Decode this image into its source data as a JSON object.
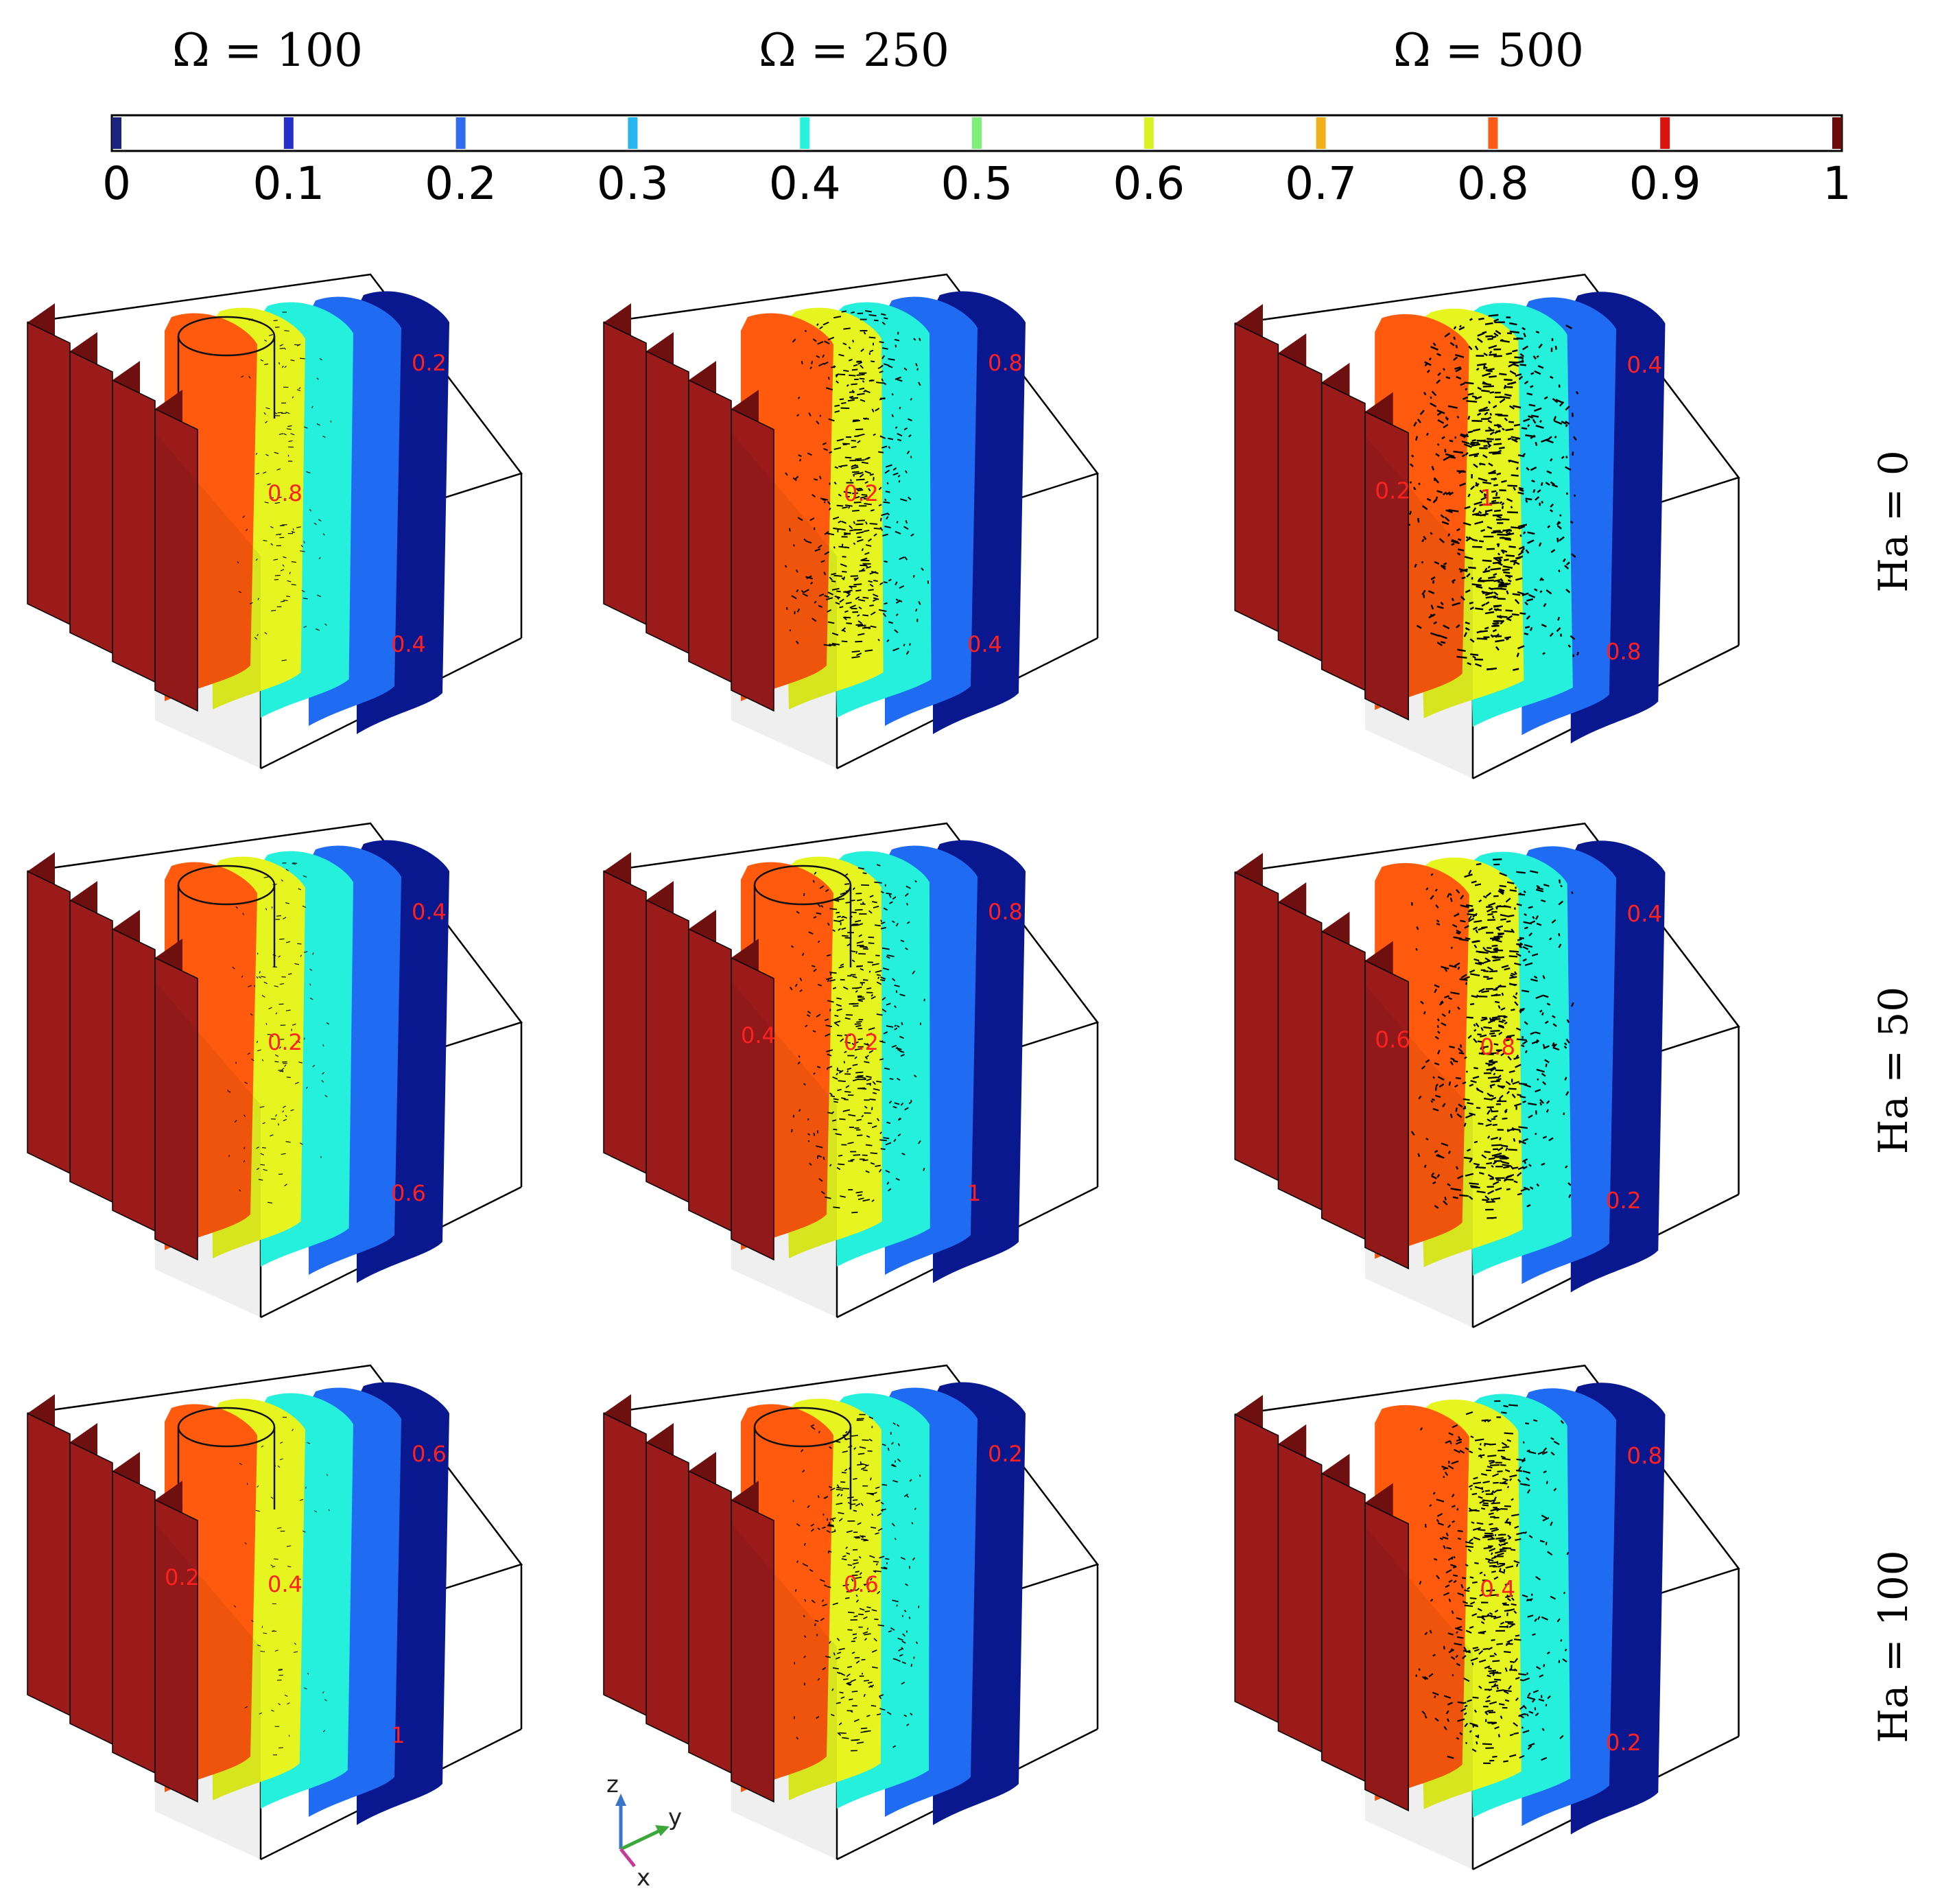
{
  "column_headers": [
    "Ω = 100",
    "Ω = 250",
    "Ω = 500"
  ],
  "row_headers": [
    "Ha = 0",
    "Ha = 50",
    "Ha = 100"
  ],
  "colorbar": {
    "min": 0,
    "max": 1,
    "ticks": [
      "0",
      "0.1",
      "0.2",
      "0.3",
      "0.4",
      "0.5",
      "0.6",
      "0.7",
      "0.8",
      "0.9",
      "1"
    ],
    "tick_colors": [
      "#1a237e",
      "#2630c8",
      "#2f6cf0",
      "#27b6f4",
      "#27f2de",
      "#7ef07a",
      "#d8f226",
      "#f0b01a",
      "#ff5a16",
      "#d8140e",
      "#6e0c0c"
    ]
  },
  "isosurface_colors": {
    "1": "#9b1b1b",
    "0.8": "#ff5a0e",
    "0.6": "#e6f520",
    "0.4": "#24f0dc",
    "0.2": "#1f6cf2",
    "0": "#0a1890"
  },
  "panels": [
    {
      "row": 0,
      "col": 0,
      "vectors": 0.2,
      "cylinder": true,
      "labels": [
        "0.2",
        "0.8",
        "0.4"
      ]
    },
    {
      "row": 0,
      "col": 1,
      "vectors": 0.7,
      "cylinder": false,
      "labels": [
        "0.8",
        "0.2",
        "0.4"
      ]
    },
    {
      "row": 0,
      "col": 2,
      "vectors": 1.0,
      "cylinder": false,
      "labels": [
        "0.4",
        "1",
        "0.8",
        "0.2"
      ]
    },
    {
      "row": 1,
      "col": 0,
      "vectors": 0.2,
      "cylinder": true,
      "labels": [
        "0.4",
        "0.2",
        "0.6"
      ]
    },
    {
      "row": 1,
      "col": 1,
      "vectors": 0.6,
      "cylinder": true,
      "labels": [
        "0.8",
        "0.2",
        "1",
        "0.4"
      ]
    },
    {
      "row": 1,
      "col": 2,
      "vectors": 0.9,
      "cylinder": false,
      "labels": [
        "0.4",
        "0.8",
        "0.2",
        "0.6"
      ]
    },
    {
      "row": 2,
      "col": 0,
      "vectors": 0.1,
      "cylinder": true,
      "labels": [
        "0.6",
        "0.4",
        "1",
        "0.2"
      ]
    },
    {
      "row": 2,
      "col": 1,
      "vectors": 0.5,
      "cylinder": true,
      "labels": [
        "0.2",
        "0.6"
      ]
    },
    {
      "row": 2,
      "col": 2,
      "vectors": 0.8,
      "cylinder": false,
      "labels": [
        "0.8",
        "0.4",
        "0.2"
      ]
    }
  ],
  "axes_triad": [
    "z",
    "y",
    "x"
  ]
}
